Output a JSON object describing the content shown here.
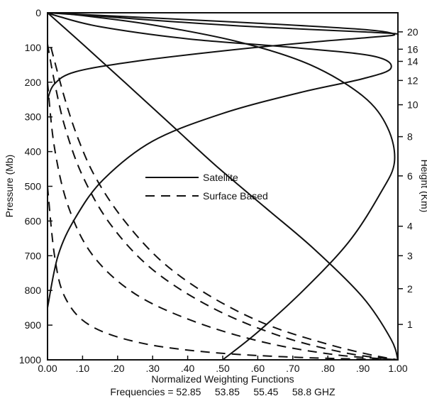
{
  "chart_data": {
    "type": "line",
    "title": "",
    "xlabel": "Normalized Weighting Functions",
    "ylabel_left": "Pressure (Mb)",
    "ylabel_right": "Height (Km)",
    "xlim": [
      0.0,
      1.0
    ],
    "ylim_left": [
      0,
      1000
    ],
    "y_inverted": true,
    "x_ticks": [
      0.0,
      0.1,
      0.2,
      0.3,
      0.4,
      0.5,
      0.6,
      0.7,
      0.8,
      0.9,
      1.0
    ],
    "x_tick_labels": [
      "0.00",
      ".10",
      ".20",
      ".30",
      ".40",
      ".50",
      ".60",
      ".70",
      ".80",
      ".90",
      "1.00"
    ],
    "y_left_ticks": [
      0,
      100,
      200,
      300,
      400,
      500,
      600,
      700,
      800,
      900,
      1000
    ],
    "y_left_tick_labels": [
      "0",
      "100",
      "200",
      "300",
      "400",
      "500",
      "600",
      "700",
      "800",
      "900",
      "1000"
    ],
    "y_right_ticks": [
      {
        "label": "20",
        "pressure": 55
      },
      {
        "label": "16",
        "pressure": 105
      },
      {
        "label": "14",
        "pressure": 140
      },
      {
        "label": "12",
        "pressure": 195
      },
      {
        "label": "10",
        "pressure": 265
      },
      {
        "label": "8",
        "pressure": 357
      },
      {
        "label": "6",
        "pressure": 470
      },
      {
        "label": "4",
        "pressure": 615
      },
      {
        "label": "3",
        "pressure": 700
      },
      {
        "label": "2",
        "pressure": 795
      },
      {
        "label": "1",
        "pressure": 898
      }
    ],
    "legend": [
      {
        "label": "Satellite",
        "style": "solid"
      },
      {
        "label": "Surface Based",
        "style": "dashed"
      }
    ],
    "legend_position": "center",
    "grid": false,
    "frequencies_text": "Frequencies = 52.85     53.85     55.45     58.8 GHZ",
    "series": [
      {
        "style": "solid",
        "points": [
          [
            0.5,
            1000
          ],
          [
            0.6,
            920
          ],
          [
            0.73,
            800
          ],
          [
            0.86,
            660
          ],
          [
            0.95,
            520
          ],
          [
            0.99,
            430
          ],
          [
            0.97,
            330
          ],
          [
            0.9,
            240
          ],
          [
            0.75,
            150
          ],
          [
            0.55,
            85
          ],
          [
            0.3,
            35
          ],
          [
            0.1,
            8
          ],
          [
            0.02,
            0
          ]
        ]
      },
      {
        "style": "solid",
        "points": [
          [
            0.0,
            850
          ],
          [
            0.03,
            700
          ],
          [
            0.08,
            590
          ],
          [
            0.16,
            480
          ],
          [
            0.3,
            370
          ],
          [
            0.5,
            290
          ],
          [
            0.72,
            230
          ],
          [
            0.9,
            190
          ],
          [
            0.98,
            160
          ],
          [
            0.93,
            125
          ],
          [
            0.7,
            100
          ],
          [
            0.4,
            75
          ],
          [
            0.15,
            40
          ],
          [
            0.03,
            10
          ],
          [
            0.0,
            0
          ]
        ]
      },
      {
        "style": "solid",
        "points": [
          [
            0.0,
            250
          ],
          [
            0.02,
            205
          ],
          [
            0.08,
            170
          ],
          [
            0.25,
            140
          ],
          [
            0.5,
            110
          ],
          [
            0.75,
            85
          ],
          [
            0.93,
            70
          ],
          [
            0.99,
            62
          ],
          [
            0.9,
            48
          ],
          [
            0.6,
            30
          ],
          [
            0.3,
            15
          ],
          [
            0.08,
            4
          ],
          [
            0.0,
            0
          ]
        ]
      },
      {
        "style": "solid",
        "points": [
          [
            0.0,
            0
          ],
          [
            0.1,
            90
          ],
          [
            0.22,
            200
          ],
          [
            0.35,
            320
          ],
          [
            0.48,
            440
          ],
          [
            0.62,
            560
          ],
          [
            0.76,
            680
          ],
          [
            0.9,
            820
          ],
          [
            0.98,
            940
          ],
          [
            1.0,
            1000
          ]
        ]
      },
      {
        "style": "solid",
        "points": [
          [
            0.0,
            0
          ],
          [
            0.15,
            10
          ],
          [
            0.35,
            25
          ],
          [
            0.55,
            38
          ],
          [
            0.75,
            48
          ],
          [
            0.9,
            55
          ],
          [
            0.99,
            60
          ],
          [
            1.0,
            65
          ]
        ]
      },
      {
        "style": "dashed",
        "points": [
          [
            0.01,
            100
          ],
          [
            0.05,
            250
          ],
          [
            0.09,
            370
          ],
          [
            0.14,
            480
          ],
          [
            0.22,
            600
          ],
          [
            0.33,
            720
          ],
          [
            0.47,
            820
          ],
          [
            0.63,
            900
          ],
          [
            0.8,
            955
          ],
          [
            0.92,
            985
          ],
          [
            1.0,
            1000
          ]
        ]
      },
      {
        "style": "dashed",
        "points": [
          [
            0.0,
            90
          ],
          [
            0.02,
            200
          ],
          [
            0.05,
            330
          ],
          [
            0.1,
            470
          ],
          [
            0.18,
            610
          ],
          [
            0.3,
            740
          ],
          [
            0.47,
            850
          ],
          [
            0.66,
            930
          ],
          [
            0.85,
            980
          ],
          [
            1.0,
            1000
          ]
        ]
      },
      {
        "style": "dashed",
        "points": [
          [
            0.0,
            200
          ],
          [
            0.02,
            390
          ],
          [
            0.06,
            560
          ],
          [
            0.13,
            700
          ],
          [
            0.25,
            810
          ],
          [
            0.42,
            890
          ],
          [
            0.62,
            950
          ],
          [
            0.82,
            985
          ],
          [
            1.0,
            1000
          ]
        ]
      },
      {
        "style": "dashed",
        "points": [
          [
            0.0,
            500
          ],
          [
            0.02,
            700
          ],
          [
            0.05,
            820
          ],
          [
            0.12,
            900
          ],
          [
            0.26,
            950
          ],
          [
            0.46,
            978
          ],
          [
            0.72,
            993
          ],
          [
            1.0,
            1000
          ]
        ]
      }
    ]
  }
}
